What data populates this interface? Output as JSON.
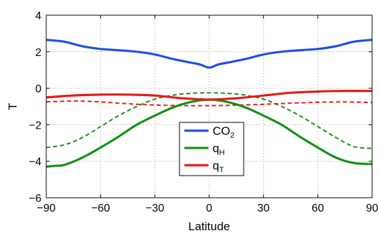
{
  "chart_data": {
    "type": "line",
    "xlabel": "Latitude",
    "ylabel": "T",
    "xlim": [
      -90,
      90
    ],
    "ylim": [
      -6,
      4
    ],
    "xticks": [
      -90,
      -60,
      -30,
      0,
      30,
      60,
      90
    ],
    "yticks": [
      -6,
      -4,
      -2,
      0,
      2,
      4
    ],
    "xtick_labels": [
      "−90",
      "−60",
      "−30",
      "0",
      "30",
      "60",
      "90"
    ],
    "ytick_labels": [
      "−6",
      "−4",
      "−2",
      "0",
      "2",
      "4"
    ],
    "grid": true,
    "grid_style": "dotted",
    "legend_position": "lower-center",
    "series": [
      {
        "name": "CO",
        "name_subscript": "2",
        "color": "#1f4de6",
        "style": "solid",
        "in_legend": true,
        "x": [
          -90,
          -80,
          -70,
          -60,
          -50,
          -40,
          -30,
          -20,
          -10,
          -5,
          0,
          5,
          10,
          20,
          30,
          40,
          50,
          60,
          70,
          80,
          90
        ],
        "y": [
          2.65,
          2.55,
          2.3,
          2.15,
          2.08,
          2.0,
          1.85,
          1.6,
          1.4,
          1.3,
          1.13,
          1.3,
          1.4,
          1.6,
          1.85,
          2.0,
          2.08,
          2.15,
          2.3,
          2.55,
          2.65
        ]
      },
      {
        "name": "q",
        "name_subscript": "H",
        "color": "#119011",
        "style": "solid",
        "in_legend": true,
        "x": [
          -90,
          -85,
          -80,
          -70,
          -60,
          -50,
          -40,
          -30,
          -20,
          -10,
          0,
          10,
          20,
          30,
          40,
          50,
          60,
          70,
          80,
          90
        ],
        "y": [
          -4.3,
          -4.25,
          -4.2,
          -3.8,
          -3.25,
          -2.65,
          -2.0,
          -1.5,
          -1.05,
          -0.75,
          -0.62,
          -0.75,
          -1.05,
          -1.5,
          -2.0,
          -2.65,
          -3.25,
          -3.8,
          -4.1,
          -4.15
        ]
      },
      {
        "name": "q",
        "name_subscript": "T",
        "color": "#e61a1a",
        "style": "solid",
        "in_legend": true,
        "x": [
          -90,
          -75,
          -60,
          -45,
          -30,
          -15,
          0,
          15,
          30,
          45,
          60,
          75,
          90
        ],
        "y": [
          -0.5,
          -0.4,
          -0.35,
          -0.35,
          -0.4,
          -0.55,
          -0.62,
          -0.55,
          -0.4,
          -0.25,
          -0.18,
          -0.15,
          -0.15
        ]
      },
      {
        "name": "",
        "color": "#119011",
        "style": "dashed",
        "in_legend": false,
        "x": [
          -90,
          -80,
          -70,
          -60,
          -50,
          -40,
          -30,
          -20,
          -10,
          0,
          10,
          20,
          30,
          40,
          50,
          60,
          70,
          80,
          90
        ],
        "y": [
          -3.25,
          -3.1,
          -2.7,
          -2.1,
          -1.5,
          -1.0,
          -0.6,
          -0.38,
          -0.28,
          -0.25,
          -0.28,
          -0.38,
          -0.6,
          -1.0,
          -1.5,
          -2.1,
          -2.7,
          -3.2,
          -3.3
        ]
      },
      {
        "name": "",
        "color": "#e61a1a",
        "style": "dashed",
        "in_legend": false,
        "x": [
          -90,
          -75,
          -60,
          -45,
          -30,
          -15,
          0,
          15,
          30,
          45,
          60,
          75,
          90
        ],
        "y": [
          -0.75,
          -0.7,
          -0.75,
          -0.85,
          -0.92,
          -0.95,
          -0.95,
          -0.93,
          -0.88,
          -0.82,
          -0.77,
          -0.75,
          -0.78
        ]
      }
    ]
  }
}
